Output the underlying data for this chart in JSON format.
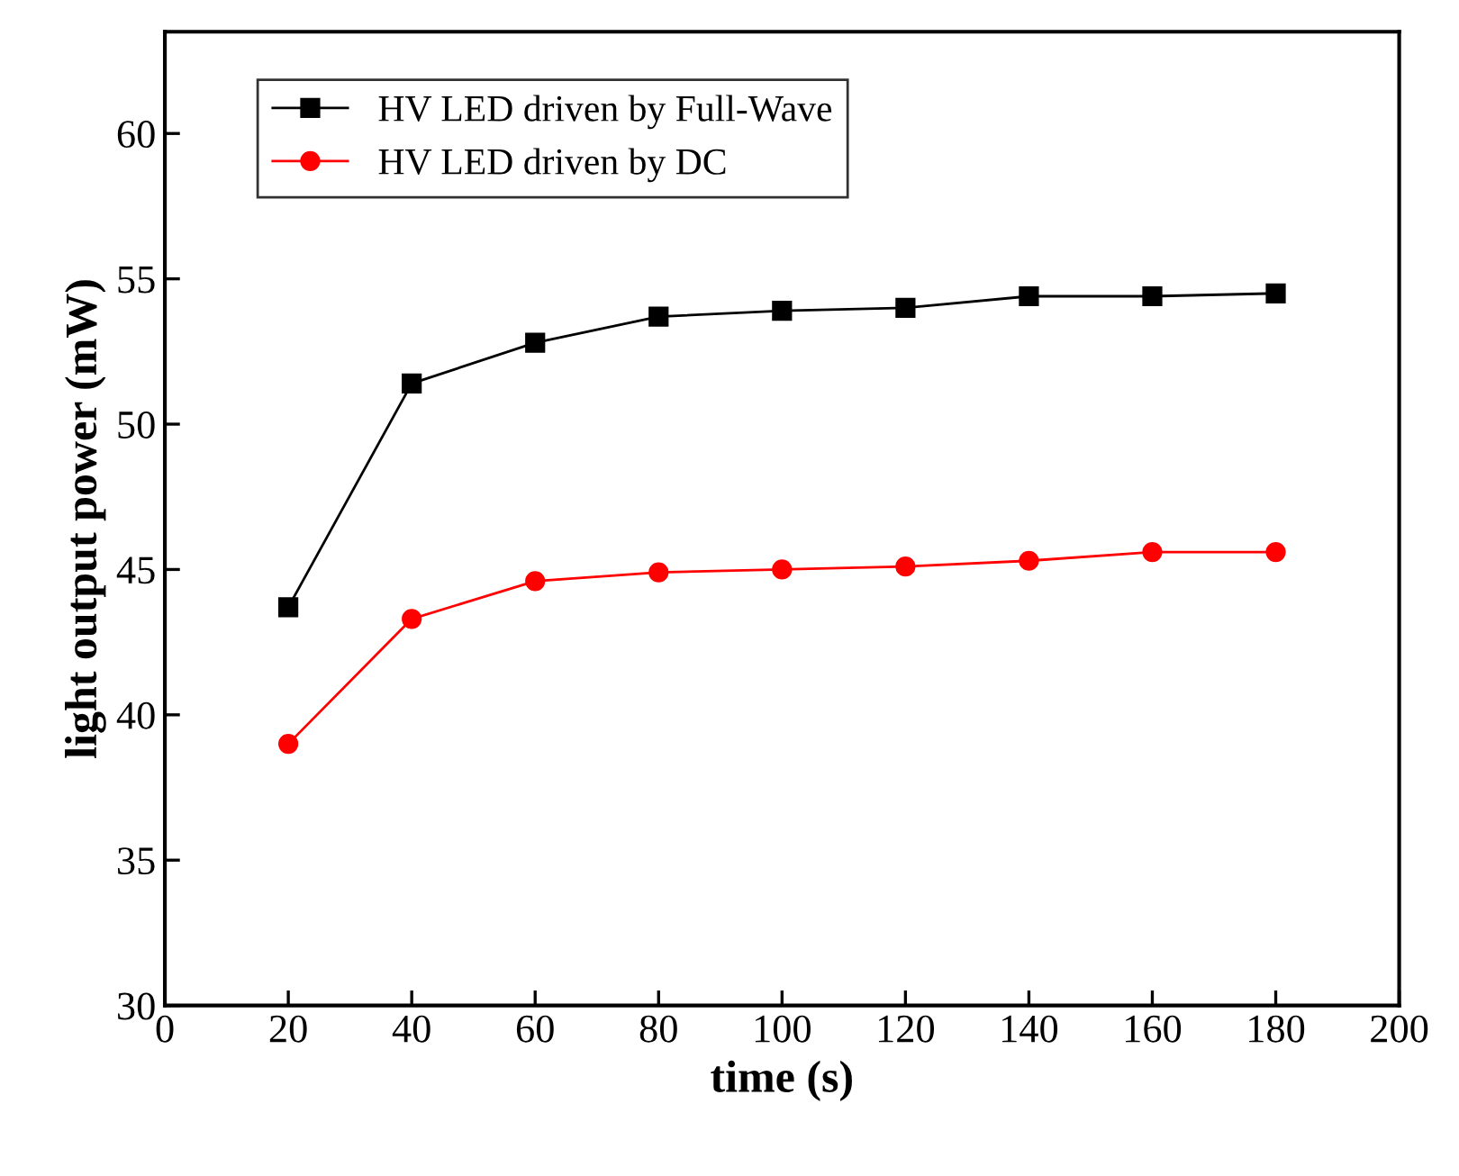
{
  "chart_data": {
    "type": "line",
    "xlabel": "time (s)",
    "ylabel": "light output power (mW)",
    "x": [
      20,
      40,
      60,
      80,
      100,
      120,
      140,
      160,
      180
    ],
    "series": [
      {
        "name": "HV LED driven by Full-Wave",
        "color": "#000000",
        "marker": "square",
        "values": [
          43.7,
          51.4,
          52.8,
          53.7,
          53.9,
          54.0,
          54.4,
          54.4,
          54.5
        ]
      },
      {
        "name": "HV LED driven by DC",
        "color": "#ff0000",
        "marker": "circle",
        "values": [
          39.0,
          43.3,
          44.6,
          44.9,
          45.0,
          45.1,
          45.3,
          45.6,
          45.6
        ]
      }
    ],
    "xlim": [
      0,
      200
    ],
    "xticks": [
      0,
      20,
      40,
      60,
      80,
      100,
      120,
      140,
      160,
      180,
      200
    ],
    "ylim": [
      30,
      63.5
    ],
    "yticks": [
      30,
      35,
      40,
      45,
      50,
      55,
      60
    ],
    "grid": false,
    "legend": "top left",
    "line_style": "solid"
  }
}
